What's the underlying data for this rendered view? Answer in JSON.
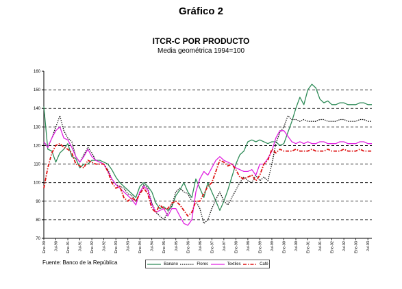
{
  "figure_title": "Gráfico 2",
  "source": "Fuente: Banco de la República",
  "chart_data": {
    "type": "line",
    "title": "ITCR-C POR PRODUCTO",
    "subtitle": "Media geométrica 1994=100",
    "xlabel": "",
    "ylabel": "",
    "ylim": [
      70,
      160
    ],
    "yticks": [
      70,
      80,
      90,
      100,
      110,
      120,
      130,
      140,
      150,
      160
    ],
    "xlim": [
      0,
      82
    ],
    "xtick_labels": [
      "Ene-90",
      "Jul-90",
      "Ene-91",
      "Jul-91",
      "Ene-92",
      "Jul-92",
      "Ene-93",
      "Jul-93",
      "Ene-94",
      "Jul-94",
      "Ene-95",
      "Jul-95",
      "Ene-96",
      "Jul-96",
      "Ene-97",
      "Jul-97",
      "Ene-98",
      "Jul-98",
      "Ene-99",
      "Jul-99",
      "Ene-00",
      "Jul-00",
      "Ene-01",
      "Jul-01",
      "Ene-02",
      "Jul-02",
      "Ene-03",
      "Jul-03"
    ],
    "grid": "horizontal dashed",
    "legend_position": "bottom",
    "series": [
      {
        "name": "Banano",
        "color": "#2e8b57",
        "style": "solid",
        "x": [
          0,
          1,
          2,
          3,
          4,
          5,
          6,
          7,
          8,
          9,
          10,
          11,
          12,
          13,
          14,
          15,
          16,
          17,
          18,
          19,
          20,
          21,
          22,
          23,
          24,
          25,
          26,
          27,
          28,
          29,
          30,
          31,
          32,
          33,
          34,
          35,
          36,
          37,
          38,
          39,
          40,
          41,
          42,
          43,
          44,
          45,
          46,
          47,
          48,
          49,
          50,
          51,
          52,
          53,
          54,
          55,
          56,
          57,
          58,
          59,
          60,
          61,
          62,
          63,
          64,
          65,
          66,
          67,
          68,
          69,
          70,
          71,
          72,
          73,
          74,
          75,
          76,
          77,
          78,
          79,
          80,
          81,
          82
        ],
        "y": [
          141,
          118,
          117,
          111,
          116,
          118,
          121,
          114,
          113,
          108,
          110,
          110,
          112,
          112,
          112,
          111,
          110,
          107,
          103,
          100,
          98,
          96,
          94,
          92,
          98,
          100,
          98,
          95,
          89,
          86,
          87,
          85,
          87,
          93,
          96,
          100,
          95,
          92,
          102,
          97,
          92,
          100,
          95,
          90,
          85,
          90,
          96,
          103,
          110,
          115,
          117,
          122,
          123,
          122,
          123,
          122,
          121,
          122,
          122,
          120,
          121,
          127,
          133,
          140,
          146,
          142,
          150,
          153,
          151,
          145,
          143,
          144,
          142,
          142,
          143,
          143,
          142,
          142,
          142,
          143,
          143,
          142,
          142
        ]
      },
      {
        "name": "Flores",
        "color": "#111111",
        "style": "dotted",
        "x": [
          0,
          1,
          2,
          3,
          4,
          5,
          6,
          7,
          8,
          9,
          10,
          11,
          12,
          13,
          14,
          15,
          16,
          17,
          18,
          19,
          20,
          21,
          22,
          23,
          24,
          25,
          26,
          27,
          28,
          29,
          30,
          31,
          32,
          33,
          34,
          35,
          36,
          37,
          38,
          39,
          40,
          41,
          42,
          43,
          44,
          45,
          46,
          47,
          48,
          49,
          50,
          51,
          52,
          53,
          54,
          55,
          56,
          57,
          58,
          59,
          60,
          61,
          62,
          63,
          64,
          65,
          66,
          67,
          68,
          69,
          70,
          71,
          72,
          73,
          74,
          75,
          76,
          77,
          78,
          79,
          80,
          81,
          82
        ],
        "y": [
          122,
          119,
          124,
          130,
          136,
          128,
          124,
          122,
          114,
          111,
          115,
          119,
          116,
          112,
          111,
          110,
          107,
          102,
          99,
          98,
          97,
          94,
          93,
          90,
          94,
          99,
          97,
          89,
          84,
          82,
          80,
          84,
          88,
          95,
          97,
          95,
          94,
          90,
          90,
          86,
          78,
          80,
          86,
          91,
          95,
          90,
          88,
          92,
          96,
          100,
          103,
          101,
          100,
          104,
          101,
          103,
          101,
          110,
          121,
          127,
          130,
          136,
          134,
          134,
          133,
          134,
          133,
          133,
          133,
          134,
          134,
          133,
          133,
          133,
          134,
          134,
          133,
          133,
          133,
          134,
          134,
          133,
          133
        ]
      },
      {
        "name": "Textiles",
        "color": "#e020e0",
        "style": "solid",
        "x": [
          0,
          1,
          2,
          3,
          4,
          5,
          6,
          7,
          8,
          9,
          10,
          11,
          12,
          13,
          14,
          15,
          16,
          17,
          18,
          19,
          20,
          21,
          22,
          23,
          24,
          25,
          26,
          27,
          28,
          29,
          30,
          31,
          32,
          33,
          34,
          35,
          36,
          37,
          38,
          39,
          40,
          41,
          42,
          43,
          44,
          45,
          46,
          47,
          48,
          49,
          50,
          51,
          52,
          53,
          54,
          55,
          56,
          57,
          58,
          59,
          60,
          61,
          62,
          63,
          64,
          65,
          66,
          67,
          68,
          69,
          70,
          71,
          72,
          73,
          74,
          75,
          76,
          77,
          78,
          79,
          80,
          81,
          82
        ],
        "y": [
          122,
          119,
          124,
          128,
          130,
          124,
          123,
          119,
          114,
          111,
          114,
          118,
          114,
          112,
          111,
          110,
          106,
          102,
          99,
          97,
          95,
          93,
          91,
          88,
          95,
          98,
          96,
          88,
          84,
          85,
          86,
          82,
          86,
          86,
          82,
          78,
          77,
          80,
          95,
          102,
          106,
          104,
          108,
          112,
          114,
          112,
          111,
          110,
          108,
          107,
          106,
          106,
          107,
          104,
          110,
          110,
          113,
          117,
          124,
          128,
          128,
          125,
          122,
          121,
          122,
          121,
          122,
          121,
          121,
          122,
          122,
          121,
          121,
          121,
          122,
          122,
          121,
          121,
          121,
          122,
          122,
          121,
          121
        ]
      },
      {
        "name": "Café",
        "color": "#dd1010",
        "style": "dashdot",
        "x": [
          0,
          1,
          2,
          3,
          4,
          5,
          6,
          7,
          8,
          9,
          10,
          11,
          12,
          13,
          14,
          15,
          16,
          17,
          18,
          19,
          20,
          21,
          22,
          23,
          24,
          25,
          26,
          27,
          28,
          29,
          30,
          31,
          32,
          33,
          34,
          35,
          36,
          37,
          38,
          39,
          40,
          41,
          42,
          43,
          44,
          45,
          46,
          47,
          48,
          49,
          50,
          51,
          52,
          53,
          54,
          55,
          56,
          57,
          58,
          59,
          60,
          61,
          62,
          63,
          64,
          65,
          66,
          67,
          68,
          69,
          70,
          71,
          72,
          73,
          74,
          75,
          76,
          77,
          78,
          79,
          80,
          81,
          82
        ],
        "y": [
          97,
          108,
          116,
          120,
          121,
          119,
          118,
          116,
          110,
          109,
          108,
          112,
          111,
          110,
          110,
          110,
          106,
          100,
          97,
          98,
          92,
          90,
          92,
          90,
          94,
          97,
          94,
          86,
          84,
          88,
          86,
          86,
          89,
          90,
          88,
          85,
          82,
          84,
          90,
          90,
          94,
          98,
          100,
          106,
          112,
          111,
          109,
          110,
          107,
          103,
          102,
          103,
          104,
          101,
          104,
          110,
          112,
          118,
          116,
          118,
          117,
          117,
          117,
          118,
          117,
          117,
          117,
          118,
          117,
          117,
          117,
          118,
          117,
          117,
          117,
          118,
          117,
          117,
          117,
          118,
          117,
          117,
          117
        ]
      }
    ]
  }
}
